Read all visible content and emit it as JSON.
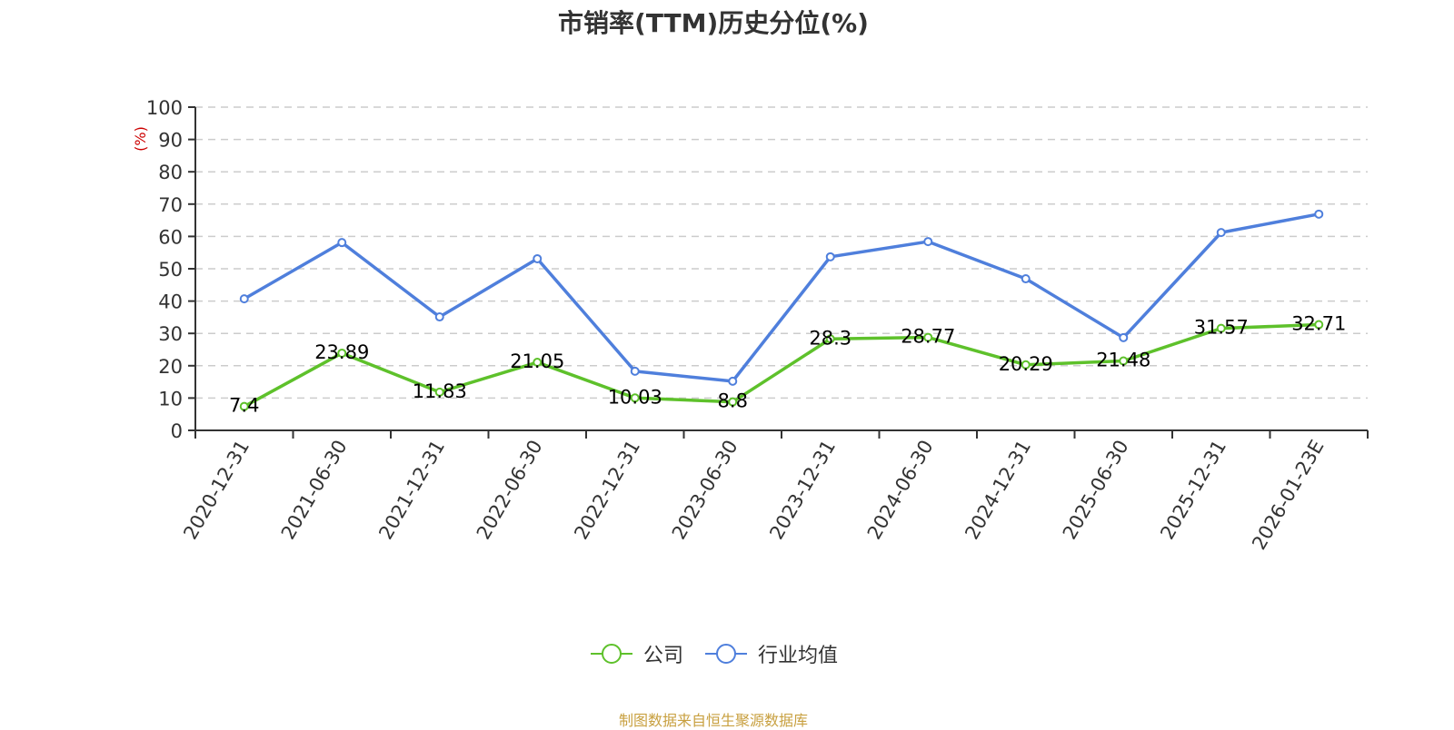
{
  "title": "市销率(TTM)历史分位(%)",
  "source_note": "制图数据来自恒生聚源数据库",
  "colors": {
    "company": "#5ec12b",
    "industry": "#4f7fdc",
    "axis": "#333333",
    "grid": "#cccccc",
    "ylabel": "#cc0000",
    "source": "#c8a040"
  },
  "legend": [
    {
      "label": "公司",
      "color": "#5ec12b"
    },
    {
      "label": "行业均值",
      "color": "#4f7fdc"
    }
  ],
  "chart_data": {
    "type": "line",
    "title": "市销率(TTM)历史分位(%)",
    "xlabel": "",
    "ylabel": "(%)",
    "ylim": [
      0,
      100
    ],
    "yticks": [
      0,
      10,
      20,
      30,
      40,
      50,
      60,
      70,
      80,
      90,
      100
    ],
    "grid": true,
    "legend_position": "bottom",
    "categories": [
      "2020-12-31",
      "2021-06-30",
      "2021-12-31",
      "2022-06-30",
      "2022-12-31",
      "2023-06-30",
      "2023-12-31",
      "2024-06-30",
      "2024-12-31",
      "2025-06-30",
      "2025-12-31",
      "2026-01-23E"
    ],
    "series": [
      {
        "name": "公司",
        "values": [
          7.4,
          23.89,
          11.83,
          21.05,
          10.03,
          8.8,
          28.3,
          28.77,
          20.29,
          21.48,
          31.57,
          32.71
        ],
        "labels_shown": true
      },
      {
        "name": "行业均值",
        "values": [
          40.7,
          58.1,
          35.1,
          53.1,
          18.3,
          15.2,
          53.7,
          58.4,
          46.9,
          28.7,
          61.2,
          66.9
        ],
        "labels_shown": false
      }
    ]
  }
}
